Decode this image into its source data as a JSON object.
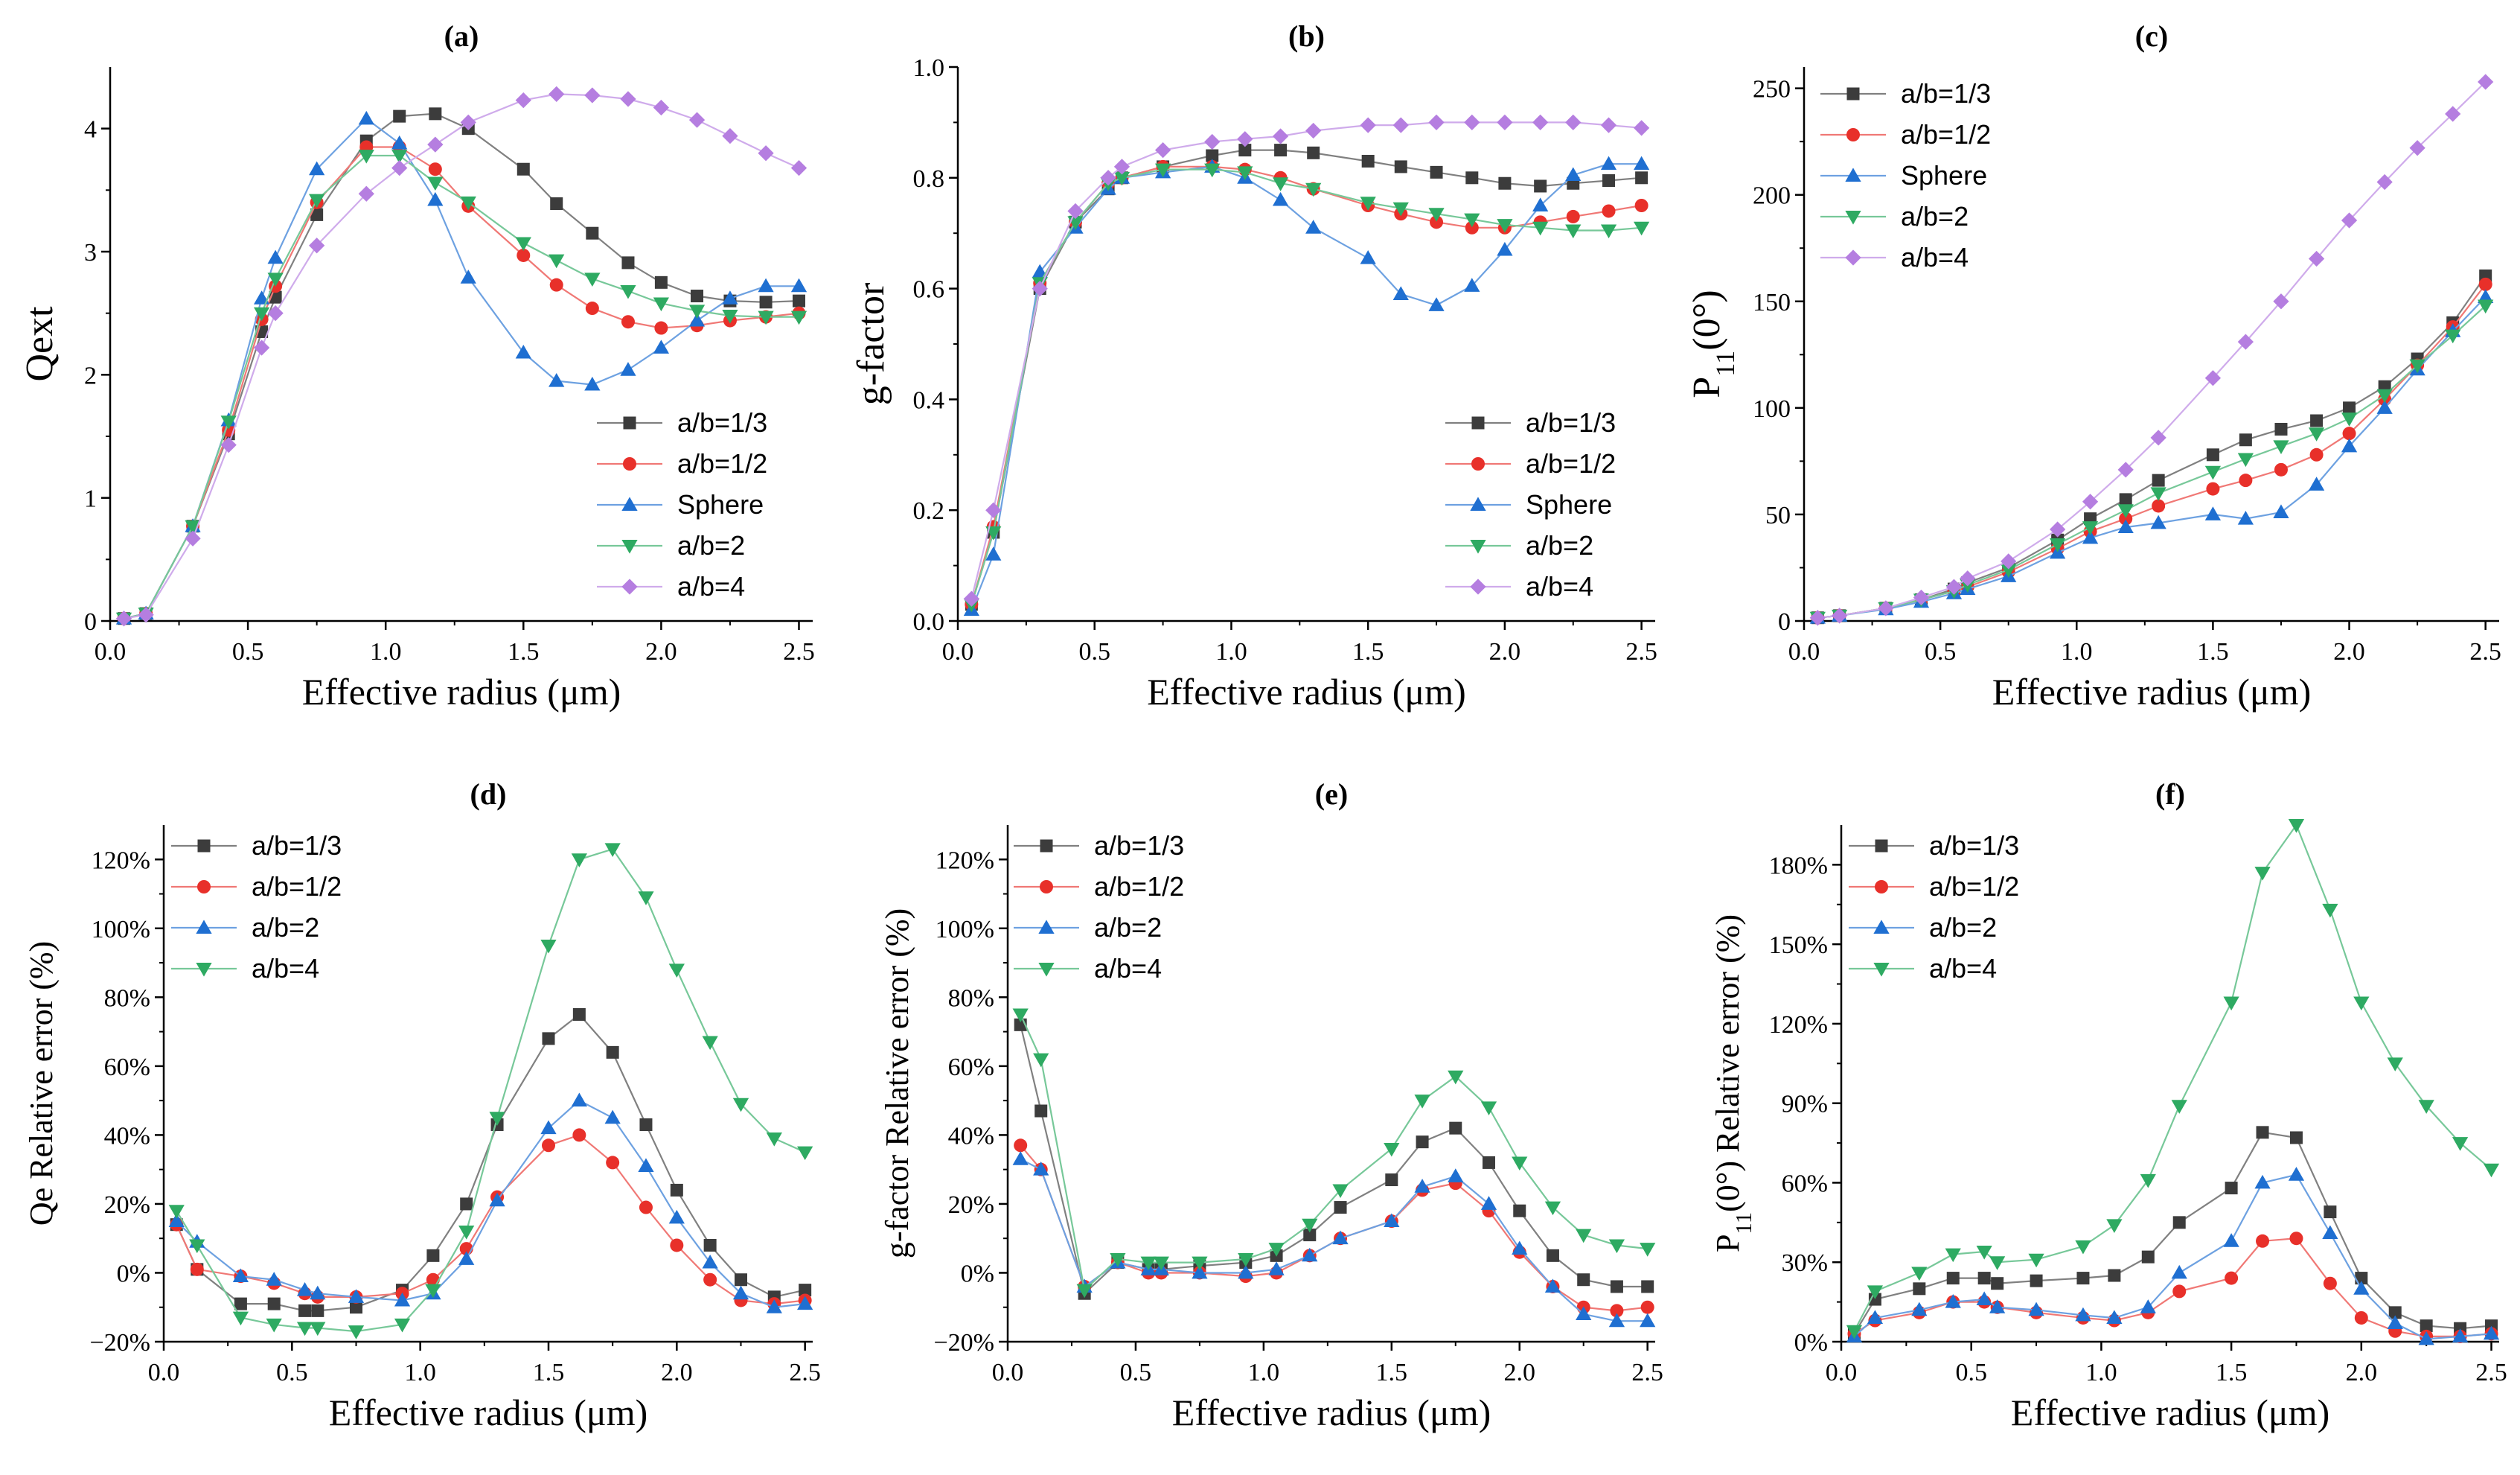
{
  "chart_data": [
    {
      "id": "a",
      "type": "line",
      "title": "(a)",
      "xlabel": "Effective radius (μm)",
      "ylabel": "Qext",
      "xlim": [
        0.0,
        2.55
      ],
      "ylim": [
        0,
        4.5
      ],
      "xticks": [
        "0.0",
        "0.5",
        "1.0",
        "1.5",
        "2.0",
        "2.5"
      ],
      "yticks": [
        "0",
        "1",
        "2",
        "3",
        "4"
      ],
      "grid": false,
      "legend_position": "lower-right",
      "x": [
        0.05,
        0.13,
        0.3,
        0.43,
        0.55,
        0.6,
        0.75,
        0.93,
        1.05,
        1.18,
        1.3,
        1.5,
        1.62,
        1.75,
        1.88,
        2.0,
        2.13,
        2.25,
        2.38,
        2.5
      ],
      "series": [
        {
          "name": "a/b=1/3",
          "color": "#3c3c3c",
          "marker": "square",
          "values": [
            0.02,
            0.06,
            0.77,
            1.52,
            2.35,
            2.63,
            3.3,
            3.9,
            4.1,
            4.12,
            4.0,
            3.67,
            3.39,
            3.15,
            2.91,
            2.75,
            2.64,
            2.6,
            2.59,
            2.6
          ]
        },
        {
          "name": "a/b=1/2",
          "color": "#e8302a",
          "marker": "circle",
          "values": [
            0.02,
            0.06,
            0.77,
            1.55,
            2.45,
            2.72,
            3.4,
            3.85,
            3.85,
            3.67,
            3.37,
            2.97,
            2.73,
            2.54,
            2.43,
            2.38,
            2.4,
            2.44,
            2.47,
            2.5
          ]
        },
        {
          "name": "Sphere",
          "color": "#1f6fd1",
          "marker": "triangle-up",
          "values": [
            0.02,
            0.06,
            0.77,
            1.63,
            2.62,
            2.95,
            3.67,
            4.08,
            3.88,
            3.42,
            2.79,
            2.18,
            1.95,
            1.92,
            2.04,
            2.22,
            2.44,
            2.62,
            2.72,
            2.72
          ]
        },
        {
          "name": "a/b=2",
          "color": "#2eaa62",
          "marker": "triangle-down",
          "values": [
            0.02,
            0.06,
            0.77,
            1.62,
            2.5,
            2.78,
            3.42,
            3.78,
            3.78,
            3.56,
            3.4,
            3.07,
            2.93,
            2.78,
            2.68,
            2.58,
            2.52,
            2.48,
            2.47,
            2.47
          ]
        },
        {
          "name": "a/b=4",
          "color": "#b57ee0",
          "marker": "diamond",
          "values": [
            0.02,
            0.05,
            0.67,
            1.43,
            2.22,
            2.5,
            3.05,
            3.47,
            3.68,
            3.87,
            4.05,
            4.23,
            4.28,
            4.27,
            4.24,
            4.17,
            4.07,
            3.94,
            3.8,
            3.68
          ]
        }
      ]
    },
    {
      "id": "b",
      "type": "line",
      "title": "(b)",
      "xlabel": "Effective radius (μm)",
      "ylabel": "g-factor",
      "xlim": [
        0.0,
        2.55
      ],
      "ylim": [
        0,
        1.0
      ],
      "xticks": [
        "0.0",
        "0.5",
        "1.0",
        "1.5",
        "2.0",
        "2.5"
      ],
      "yticks": [
        "0.0",
        "0.2",
        "0.4",
        "0.6",
        "0.8",
        "1.0"
      ],
      "grid": false,
      "legend_position": "lower-right",
      "x": [
        0.05,
        0.13,
        0.3,
        0.43,
        0.55,
        0.6,
        0.75,
        0.93,
        1.05,
        1.18,
        1.3,
        1.5,
        1.62,
        1.75,
        1.88,
        2.0,
        2.13,
        2.25,
        2.38,
        2.5
      ],
      "series": [
        {
          "name": "a/b=1/3",
          "color": "#3c3c3c",
          "marker": "square",
          "values": [
            0.03,
            0.16,
            0.6,
            0.72,
            0.78,
            0.8,
            0.82,
            0.84,
            0.85,
            0.85,
            0.845,
            0.83,
            0.82,
            0.81,
            0.8,
            0.79,
            0.785,
            0.79,
            0.795,
            0.8
          ]
        },
        {
          "name": "a/b=1/2",
          "color": "#e8302a",
          "marker": "circle",
          "values": [
            0.03,
            0.17,
            0.61,
            0.72,
            0.79,
            0.8,
            0.82,
            0.82,
            0.815,
            0.8,
            0.78,
            0.75,
            0.735,
            0.72,
            0.71,
            0.71,
            0.72,
            0.73,
            0.74,
            0.75
          ]
        },
        {
          "name": "Sphere",
          "color": "#1f6fd1",
          "marker": "triangle-up",
          "values": [
            0.02,
            0.12,
            0.63,
            0.71,
            0.78,
            0.8,
            0.81,
            0.82,
            0.8,
            0.76,
            0.71,
            0.655,
            0.59,
            0.57,
            0.605,
            0.67,
            0.75,
            0.805,
            0.825,
            0.825
          ]
        },
        {
          "name": "a/b=2",
          "color": "#2eaa62",
          "marker": "triangle-down",
          "values": [
            0.03,
            0.16,
            0.61,
            0.72,
            0.79,
            0.8,
            0.815,
            0.815,
            0.81,
            0.79,
            0.78,
            0.755,
            0.745,
            0.735,
            0.725,
            0.715,
            0.71,
            0.705,
            0.705,
            0.71
          ]
        },
        {
          "name": "a/b=4",
          "color": "#b57ee0",
          "marker": "diamond",
          "values": [
            0.04,
            0.2,
            0.6,
            0.74,
            0.8,
            0.82,
            0.85,
            0.865,
            0.87,
            0.875,
            0.885,
            0.895,
            0.895,
            0.9,
            0.9,
            0.9,
            0.9,
            0.9,
            0.895,
            0.89
          ]
        }
      ]
    },
    {
      "id": "c",
      "type": "line",
      "title": "(c)",
      "xlabel": "Effective radius (μm)",
      "ylabel_main": "P",
      "ylabel_sub": "11",
      "ylabel_tail": "(0°)",
      "xlim": [
        0.0,
        2.55
      ],
      "ylim": [
        0,
        260
      ],
      "xticks": [
        "0.0",
        "0.5",
        "1.0",
        "1.5",
        "2.0",
        "2.5"
      ],
      "yticks": [
        "0",
        "50",
        "100",
        "150",
        "200",
        "250"
      ],
      "grid": false,
      "legend_position": "top-left",
      "x": [
        0.05,
        0.13,
        0.3,
        0.43,
        0.55,
        0.6,
        0.75,
        0.93,
        1.05,
        1.18,
        1.3,
        1.5,
        1.62,
        1.75,
        1.88,
        2.0,
        2.13,
        2.25,
        2.38,
        2.5
      ],
      "series": [
        {
          "name": "a/b=1/3",
          "color": "#3c3c3c",
          "marker": "square",
          "values": [
            1.5,
            2.5,
            6,
            10,
            15,
            18,
            25,
            38,
            48,
            57,
            66,
            78,
            85,
            90,
            94,
            100,
            110,
            123,
            140,
            162
          ]
        },
        {
          "name": "a/b=1/2",
          "color": "#e8302a",
          "marker": "circle",
          "values": [
            1.5,
            2.5,
            6,
            10,
            14,
            16,
            23,
            34,
            42,
            48,
            54,
            62,
            66,
            71,
            78,
            88,
            104,
            120,
            138,
            158
          ]
        },
        {
          "name": "Sphere",
          "color": "#1f6fd1",
          "marker": "triangle-up",
          "values": [
            1.5,
            2.5,
            5.5,
            9,
            13,
            15,
            21,
            32,
            39,
            44,
            46,
            50,
            48,
            51,
            64,
            82,
            100,
            118,
            136,
            152
          ]
        },
        {
          "name": "a/b=2",
          "color": "#2eaa62",
          "marker": "triangle-down",
          "values": [
            1.5,
            2.5,
            6,
            10,
            14,
            17,
            24,
            36,
            44,
            52,
            60,
            70,
            76,
            82,
            88,
            95,
            106,
            120,
            134,
            148
          ]
        },
        {
          "name": "a/b=4",
          "color": "#b57ee0",
          "marker": "diamond",
          "values": [
            1.5,
            2.5,
            6,
            11,
            16,
            20,
            28,
            43,
            56,
            71,
            86,
            114,
            131,
            150,
            170,
            188,
            206,
            222,
            238,
            253
          ]
        }
      ]
    },
    {
      "id": "d",
      "type": "line",
      "title": "(d)",
      "xlabel": "Effective radius (μm)",
      "ylabel": "Qe Relative error (%)",
      "xlim": [
        0.0,
        2.53
      ],
      "ylim": [
        -20,
        130
      ],
      "xticks": [
        "0.0",
        "0.5",
        "1.0",
        "1.5",
        "2.0",
        "2.5"
      ],
      "yticks": [
        "−20%",
        "0%",
        "20%",
        "40%",
        "60%",
        "80%",
        "100%",
        "120%"
      ],
      "grid": false,
      "legend_position": "top-left",
      "x": [
        0.05,
        0.13,
        0.3,
        0.43,
        0.55,
        0.6,
        0.75,
        0.93,
        1.05,
        1.18,
        1.3,
        1.5,
        1.62,
        1.75,
        1.88,
        2.0,
        2.13,
        2.25,
        2.38,
        2.5
      ],
      "series": [
        {
          "name": "a/b=1/3",
          "color": "#3c3c3c",
          "marker": "square",
          "values": [
            14,
            1,
            -9,
            -9,
            -11,
            -11,
            -10,
            -5,
            5,
            20,
            43,
            68,
            75,
            64,
            43,
            24,
            8,
            -2,
            -7,
            -5
          ]
        },
        {
          "name": "a/b=1/2",
          "color": "#e8302a",
          "marker": "circle",
          "values": [
            14,
            1,
            -1,
            -3,
            -6,
            -7,
            -7,
            -6,
            -2,
            7,
            22,
            37,
            40,
            32,
            19,
            8,
            -2,
            -8,
            -9,
            -8
          ]
        },
        {
          "name": "a/b=2",
          "color": "#1f6fd1",
          "marker": "triangle-up",
          "values": [
            15,
            9,
            -1,
            -2,
            -5,
            -6,
            -7,
            -8,
            -6,
            4,
            21,
            42,
            50,
            45,
            31,
            16,
            3,
            -6,
            -10,
            -9
          ]
        },
        {
          "name": "a/b=4",
          "color": "#2eaa62",
          "marker": "triangle-down",
          "values": [
            18,
            8,
            -13,
            -15,
            -16,
            -16,
            -17,
            -15,
            -5,
            12,
            45,
            95,
            120,
            123,
            109,
            88,
            67,
            49,
            39,
            35
          ]
        }
      ]
    },
    {
      "id": "e",
      "type": "line",
      "title": "(e)",
      "xlabel": "Effective radius (μm)",
      "ylabel": "g-factor Relative error (%)",
      "xlim": [
        0.0,
        2.53
      ],
      "ylim": [
        -20,
        130
      ],
      "xticks": [
        "0.0",
        "0.5",
        "1.0",
        "1.5",
        "2.0",
        "2.5"
      ],
      "yticks": [
        "−20%",
        "0%",
        "20%",
        "40%",
        "60%",
        "80%",
        "100%",
        "120%"
      ],
      "grid": false,
      "legend_position": "top-left",
      "x": [
        0.05,
        0.13,
        0.3,
        0.43,
        0.55,
        0.6,
        0.75,
        0.93,
        1.05,
        1.18,
        1.3,
        1.5,
        1.62,
        1.75,
        1.88,
        2.0,
        2.13,
        2.25,
        2.38,
        2.5
      ],
      "series": [
        {
          "name": "a/b=1/3",
          "color": "#3c3c3c",
          "marker": "square",
          "values": [
            72,
            47,
            -6,
            3,
            1,
            1,
            2,
            3,
            5,
            11,
            19,
            27,
            38,
            42,
            32,
            18,
            5,
            -2,
            -4,
            -4
          ]
        },
        {
          "name": "a/b=1/2",
          "color": "#e8302a",
          "marker": "circle",
          "values": [
            37,
            30,
            -4,
            3,
            0,
            0,
            0,
            -1,
            0,
            5,
            10,
            15,
            24,
            26,
            18,
            6,
            -4,
            -10,
            -11,
            -10
          ]
        },
        {
          "name": "a/b=2",
          "color": "#1f6fd1",
          "marker": "triangle-up",
          "values": [
            33,
            30,
            -4,
            3,
            1,
            1,
            0,
            0,
            1,
            5,
            10,
            15,
            25,
            28,
            20,
            7,
            -4,
            -12,
            -14,
            -14
          ]
        },
        {
          "name": "a/b=4",
          "color": "#2eaa62",
          "marker": "triangle-down",
          "values": [
            75,
            62,
            -5,
            4,
            3,
            3,
            3,
            4,
            7,
            14,
            24,
            36,
            50,
            57,
            48,
            32,
            19,
            11,
            8,
            7
          ]
        }
      ]
    },
    {
      "id": "f",
      "type": "line",
      "title": "(f)",
      "xlabel": "Effective radius (μm)",
      "ylabel_main": "P",
      "ylabel_sub": "11",
      "ylabel_tail": "(0°) Relative error (%)",
      "xlim": [
        0.0,
        2.53
      ],
      "ylim": [
        0,
        195
      ],
      "xticks": [
        "0.0",
        "0.5",
        "1.0",
        "1.5",
        "2.0",
        "2.5"
      ],
      "yticks": [
        "0%",
        "30%",
        "60%",
        "90%",
        "120%",
        "150%",
        "180%"
      ],
      "grid": false,
      "legend_position": "top-left",
      "x": [
        0.05,
        0.13,
        0.3,
        0.43,
        0.55,
        0.6,
        0.75,
        0.93,
        1.05,
        1.18,
        1.3,
        1.5,
        1.62,
        1.75,
        1.88,
        2.0,
        2.13,
        2.25,
        2.38,
        2.5
      ],
      "series": [
        {
          "name": "a/b=1/3",
          "color": "#3c3c3c",
          "marker": "square",
          "values": [
            3,
            16,
            20,
            24,
            24,
            22,
            23,
            24,
            25,
            32,
            45,
            58,
            79,
            77,
            49,
            24,
            11,
            6,
            5,
            6
          ]
        },
        {
          "name": "a/b=1/2",
          "color": "#e8302a",
          "marker": "circle",
          "values": [
            3,
            8,
            11,
            15,
            15,
            13,
            11,
            9,
            8,
            11,
            19,
            24,
            38,
            39,
            22,
            9,
            4,
            2,
            2,
            3
          ]
        },
        {
          "name": "a/b=2",
          "color": "#1f6fd1",
          "marker": "triangle-up",
          "values": [
            2,
            9,
            12,
            15,
            16,
            13,
            12,
            10,
            9,
            13,
            26,
            38,
            60,
            63,
            41,
            20,
            7,
            1,
            2,
            3
          ]
        },
        {
          "name": "a/b=4",
          "color": "#2eaa62",
          "marker": "triangle-down",
          "values": [
            4,
            19,
            26,
            33,
            34,
            30,
            31,
            36,
            44,
            61,
            89,
            128,
            177,
            195,
            163,
            128,
            105,
            89,
            75,
            65
          ]
        }
      ]
    }
  ]
}
